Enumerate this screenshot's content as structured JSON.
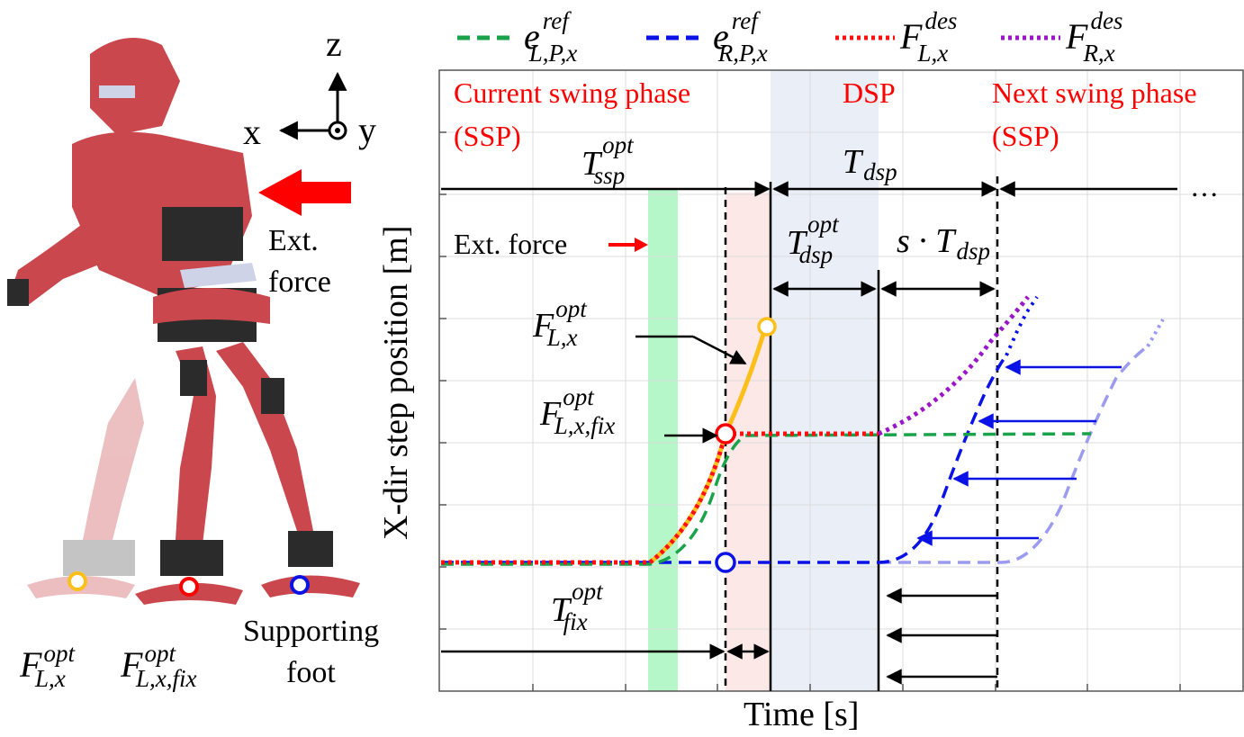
{
  "legend": {
    "items": [
      {
        "sym": "e",
        "sup": "ref",
        "sub": "L,P,x",
        "color": "#1aa34a",
        "style": "dashed"
      },
      {
        "sym": "e",
        "sup": "ref",
        "sub": "R,P,x",
        "color": "#0a12e6",
        "style": "dashed"
      },
      {
        "sym": "F",
        "sup": "des",
        "sub": "L,x",
        "color": "#ff1010",
        "style": "dotted"
      },
      {
        "sym": "F",
        "sup": "des",
        "sub": "R,x",
        "color": "#9a16c8",
        "style": "dotted"
      }
    ]
  },
  "axes": {
    "xlabel": "Time [s]",
    "ylabel": "X-dir step position [m]"
  },
  "phases": {
    "current": {
      "line1": "Current swing phase",
      "line2": "(SSP)"
    },
    "dsp": "DSP",
    "next": {
      "line1": "Next swing phase",
      "line2": "(SSP)"
    }
  },
  "durations": {
    "ssp_opt": {
      "sym": "T",
      "sup": "opt",
      "sub": "ssp"
    },
    "dsp": {
      "sym": "T",
      "sub": "dsp"
    },
    "dsp_opt": {
      "sym": "T",
      "sup": "opt",
      "sub": "dsp"
    },
    "s_dsp": {
      "pre": "s · ",
      "sym": "T",
      "sub": "dsp"
    },
    "fix_opt": {
      "sym": "T",
      "sup": "opt",
      "sub": "fix"
    },
    "ellipsis": "…"
  },
  "annotations": {
    "ext_force_plot": "Ext. force",
    "f_opt": {
      "sym": "F",
      "sup": "opt",
      "sub": "L,x"
    },
    "f_opt_fix": {
      "sym": "F",
      "sup": "opt",
      "sub": "L,x,fix"
    }
  },
  "robot": {
    "axis_z": "z",
    "axis_x": "x",
    "axis_y": "y",
    "ext_line1": "Ext.",
    "ext_line2": "force",
    "label_f_opt": {
      "sym": "F",
      "sup": "opt",
      "sub": "L,x"
    },
    "label_f_fix": {
      "sym": "F",
      "sup": "opt",
      "sub": "L,x,fix"
    },
    "support_line1": "Supporting",
    "support_line2": "foot"
  },
  "colors": {
    "green": "#1aa34a",
    "blue": "#0a12e6",
    "lightblue": "#9b9bf0",
    "red": "#ff0000",
    "purple": "#9a16c8",
    "orange": "#ffbf1a",
    "robot": "#c9474d",
    "dsp_band": "#e9eef7",
    "green_band": "#b5f7c8",
    "pink_band": "#fde8e8"
  }
}
